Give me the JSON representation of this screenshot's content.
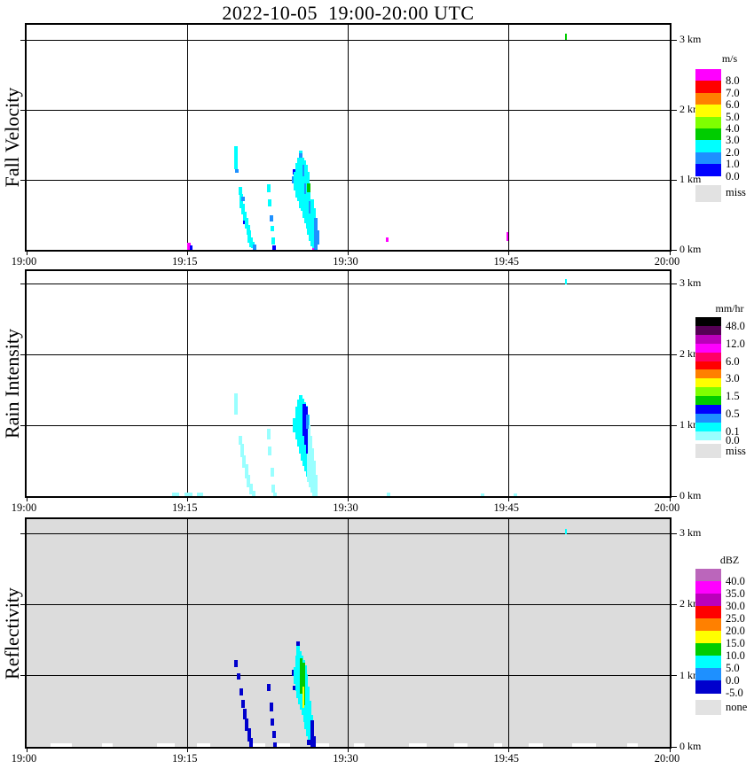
{
  "title": "2022-10-05  19:00-20:00 UTC",
  "palette": {
    "bk": "#000000",
    "dpu": "#550055",
    "pu": "#bb00bb",
    "mg": "#ff00ff",
    "dp": "#ff0066",
    "rd": "#ff0000",
    "or": "#ff8000",
    "yw": "#ffff00",
    "ch": "#7fff00",
    "gr": "#00cc00",
    "cy": "#00ffff",
    "pc": "#99ffff",
    "db": "#1e90ff",
    "bl": "#0000ff",
    "dk": "#0000cd",
    "oc": "#bb66bb",
    "ms": "#e2e2e2",
    "wh": "#ffffff",
    "bg3": "#dcdcdc",
    "grid": "#000000"
  },
  "chart_data": [
    {
      "type": "heatmap",
      "name": "Fall Velocity",
      "units": "m/s",
      "background": "#ffffff",
      "x_range_minutes_after_1900": [
        0,
        60
      ],
      "y_range_km": [
        0,
        3.2
      ],
      "x_ticks": [
        {
          "t": 0,
          "label": "19:00"
        },
        {
          "t": 15,
          "label": "19:15"
        },
        {
          "t": 30,
          "label": "19:30"
        },
        {
          "t": 45,
          "label": "19:45"
        },
        {
          "t": 60,
          "label": "20:00"
        }
      ],
      "y_ticks": [
        {
          "km": 0,
          "label": "0 km"
        },
        {
          "km": 1,
          "label": "1 km"
        },
        {
          "km": 2,
          "label": "2 km"
        },
        {
          "km": 3,
          "label": "3 km"
        }
      ],
      "grid_t": [
        15,
        30,
        45
      ],
      "grid_km": [
        1,
        2,
        3
      ],
      "legend": {
        "title": "m/s",
        "entries": [
          [
            "mg",
            "8.0"
          ],
          [
            "rd",
            "7.0"
          ],
          [
            "or",
            "6.0"
          ],
          [
            "yw",
            "5.0"
          ],
          [
            "ch",
            "4.0"
          ],
          [
            "gr",
            "3.0"
          ],
          [
            "cy",
            "2.0"
          ],
          [
            "db",
            "1.0"
          ],
          [
            "bl",
            "0.0"
          ]
        ],
        "extra": [
          "ms",
          "miss"
        ]
      },
      "cells": [
        [
          15.1,
          0,
          0.1,
          "mg"
        ],
        [
          15.35,
          0,
          0.06,
          "bl",
          0.2
        ],
        [
          19.5,
          1.15,
          1.48,
          "cy"
        ],
        [
          19.6,
          1.1,
          1.15,
          "db"
        ],
        [
          19.9,
          0.78,
          0.9,
          "cy"
        ],
        [
          20.0,
          0.6,
          0.8,
          "cy"
        ],
        [
          20.15,
          0.7,
          0.76,
          "db"
        ],
        [
          20.2,
          0.5,
          0.66,
          "cy"
        ],
        [
          20.35,
          0.42,
          0.55,
          "cy"
        ],
        [
          20.35,
          0.36,
          0.42,
          "bl"
        ],
        [
          20.5,
          0.3,
          0.46,
          "cy"
        ],
        [
          20.65,
          0.22,
          0.36,
          "cy"
        ],
        [
          20.8,
          0.1,
          0.28,
          "cy"
        ],
        [
          20.95,
          0.04,
          0.18,
          "cy"
        ],
        [
          21.1,
          0.02,
          0.12,
          "cy"
        ],
        [
          21.3,
          0.0,
          0.08,
          "db"
        ],
        [
          22.55,
          0.82,
          0.94,
          "cy"
        ],
        [
          22.7,
          0.62,
          0.72,
          "cy"
        ],
        [
          22.8,
          0.4,
          0.5,
          "db"
        ],
        [
          22.9,
          0.26,
          0.34,
          "cy"
        ],
        [
          23.0,
          0.08,
          0.18,
          "cy"
        ],
        [
          23.1,
          0.0,
          0.06,
          "bl"
        ],
        [
          24.9,
          0.95,
          1.05,
          "db"
        ],
        [
          24.95,
          1.08,
          1.15,
          "bl"
        ],
        [
          25.05,
          0.85,
          1.12,
          "cy"
        ],
        [
          25.2,
          0.75,
          1.24,
          "cy"
        ],
        [
          25.4,
          0.7,
          1.32,
          "cy"
        ],
        [
          25.55,
          0.6,
          1.42,
          "cy"
        ],
        [
          25.55,
          1.32,
          1.38,
          "db"
        ],
        [
          25.7,
          0.55,
          1.32,
          "cy"
        ],
        [
          25.9,
          0.45,
          1.28,
          "cy"
        ],
        [
          25.9,
          1.05,
          1.22,
          "db"
        ],
        [
          26.05,
          0.38,
          1.22,
          "cy"
        ],
        [
          26.1,
          0.8,
          0.95,
          "db"
        ],
        [
          26.2,
          0.3,
          1.12,
          "cy"
        ],
        [
          26.35,
          0.82,
          0.95,
          "gr"
        ],
        [
          26.35,
          0.22,
          0.82,
          "cy"
        ],
        [
          26.5,
          0.52,
          0.7,
          "db"
        ],
        [
          26.5,
          0.12,
          0.52,
          "cy"
        ],
        [
          26.65,
          0.05,
          0.72,
          "cy"
        ],
        [
          26.8,
          0.02,
          0.6,
          "cy"
        ],
        [
          26.8,
          0.0,
          0.03,
          "mg"
        ],
        [
          26.95,
          0.0,
          0.45,
          "db"
        ],
        [
          27.1,
          0.08,
          0.28,
          "db"
        ],
        [
          33.65,
          0.11,
          0.18,
          "mg",
          0.25
        ],
        [
          44.85,
          0.13,
          0.25,
          "mg",
          0.15
        ],
        [
          50.3,
          3.0,
          3.09,
          "gr",
          0.2
        ]
      ]
    },
    {
      "type": "heatmap",
      "name": "Rain Intensity",
      "units": "mm/hr",
      "background": "#ffffff",
      "x_range_minutes_after_1900": [
        0,
        60
      ],
      "y_range_km": [
        0,
        3.2
      ],
      "x_ticks": [
        {
          "t": 0,
          "label": "19:00"
        },
        {
          "t": 15,
          "label": "19:15"
        },
        {
          "t": 30,
          "label": "19:30"
        },
        {
          "t": 45,
          "label": "19:45"
        },
        {
          "t": 60,
          "label": "20:00"
        }
      ],
      "y_ticks": [
        {
          "km": 0,
          "label": "0 km"
        },
        {
          "km": 1,
          "label": "1 km"
        },
        {
          "km": 2,
          "label": "2 km"
        },
        {
          "km": 3,
          "label": "3 km"
        }
      ],
      "grid_t": [
        15,
        30,
        45
      ],
      "grid_km": [
        1,
        2,
        3
      ],
      "legend": {
        "title": "mm/hr",
        "entries": [
          [
            "bk",
            "48.0"
          ],
          [
            "dpu",
            ""
          ],
          [
            "pu",
            "12.0"
          ],
          [
            "mg",
            ""
          ],
          [
            "dp",
            "6.0"
          ],
          [
            "rd",
            ""
          ],
          [
            "or",
            "3.0"
          ],
          [
            "yw",
            ""
          ],
          [
            "ch",
            "1.5"
          ],
          [
            "gr",
            ""
          ],
          [
            "bl",
            "0.5"
          ],
          [
            "db",
            ""
          ],
          [
            "cy",
            "0.1"
          ],
          [
            "pc",
            "0.0"
          ]
        ],
        "extra": [
          "ms",
          "miss"
        ]
      },
      "cells": [
        [
          13.9,
          0.0,
          0.05,
          "pc",
          0.6
        ],
        [
          15.1,
          0.0,
          0.05,
          "pc",
          0.8
        ],
        [
          16.2,
          0.0,
          0.05,
          "pc",
          0.6
        ],
        [
          19.5,
          1.15,
          1.45,
          "pc"
        ],
        [
          19.9,
          0.72,
          0.85,
          "pc"
        ],
        [
          20.1,
          0.55,
          0.74,
          "pc"
        ],
        [
          20.3,
          0.4,
          0.58,
          "pc"
        ],
        [
          20.5,
          0.25,
          0.45,
          "pc"
        ],
        [
          20.7,
          0.12,
          0.3,
          "pc"
        ],
        [
          20.9,
          0.02,
          0.18,
          "pc"
        ],
        [
          21.15,
          0.0,
          0.08,
          "pc"
        ],
        [
          22.55,
          0.8,
          0.95,
          "pc"
        ],
        [
          22.7,
          0.58,
          0.7,
          "pc"
        ],
        [
          22.9,
          0.28,
          0.4,
          "pc"
        ],
        [
          23.0,
          0.05,
          0.16,
          "pc"
        ],
        [
          23.15,
          0.0,
          0.05,
          "pc"
        ],
        [
          25.0,
          0.9,
          1.1,
          "cy"
        ],
        [
          25.2,
          0.8,
          1.26,
          "cy"
        ],
        [
          25.4,
          0.7,
          1.36,
          "cy"
        ],
        [
          25.6,
          0.6,
          1.42,
          "cy"
        ],
        [
          25.75,
          0.5,
          1.38,
          "cy"
        ],
        [
          25.9,
          0.42,
          1.32,
          "cy"
        ],
        [
          26.05,
          0.35,
          1.28,
          "cy"
        ],
        [
          26.2,
          0.28,
          1.15,
          "cy"
        ],
        [
          26.35,
          0.2,
          1.0,
          "pc"
        ],
        [
          26.5,
          0.12,
          0.85,
          "pc"
        ],
        [
          26.65,
          0.05,
          0.68,
          "pc"
        ],
        [
          26.8,
          0.0,
          0.5,
          "pc"
        ],
        [
          26.95,
          0.0,
          0.3,
          "pc"
        ],
        [
          25.9,
          0.85,
          1.3,
          "bl"
        ],
        [
          26.05,
          0.72,
          1.26,
          "bl"
        ],
        [
          26.15,
          0.6,
          1.1,
          "bl",
          0.17
        ],
        [
          26.2,
          0.95,
          1.15,
          "db",
          0.17
        ],
        [
          33.8,
          0.0,
          0.05,
          "pc"
        ],
        [
          42.5,
          0.0,
          0.04,
          "pc"
        ],
        [
          45.6,
          0.0,
          0.04,
          "pc"
        ],
        [
          50.3,
          2.99,
          3.06,
          "cy",
          0.15
        ]
      ]
    },
    {
      "type": "heatmap",
      "name": "Reflectivity",
      "units": "dBZ",
      "background": "#dcdcdc",
      "x_range_minutes_after_1900": [
        0,
        60
      ],
      "y_range_km": [
        0,
        3.2
      ],
      "x_ticks": [
        {
          "t": 0,
          "label": "19:00"
        },
        {
          "t": 15,
          "label": "19:15"
        },
        {
          "t": 30,
          "label": "19:30"
        },
        {
          "t": 45,
          "label": "19:45"
        },
        {
          "t": 60,
          "label": "20:00"
        }
      ],
      "y_ticks": [
        {
          "km": 0,
          "label": "0 km"
        },
        {
          "km": 1,
          "label": "1 km"
        },
        {
          "km": 2,
          "label": "2 km"
        },
        {
          "km": 3,
          "label": "3 km"
        }
      ],
      "grid_t": [
        15,
        30,
        45
      ],
      "grid_km": [
        1,
        2,
        3
      ],
      "legend": {
        "title": "dBZ",
        "entries": [
          [
            "oc",
            "40.0"
          ],
          [
            "mg",
            "35.0"
          ],
          [
            "pu",
            "30.0"
          ],
          [
            "rd",
            "25.0"
          ],
          [
            "or",
            "20.0"
          ],
          [
            "yw",
            "15.0"
          ],
          [
            "gr",
            "10.0"
          ],
          [
            "cy",
            "5.0"
          ],
          [
            "db",
            "0.0"
          ],
          [
            "dk",
            "-5.0"
          ]
        ],
        "extra": [
          "ms",
          "none"
        ]
      },
      "cells": [
        [
          3.2,
          0,
          0.05,
          "wh",
          2.0
        ],
        [
          7.5,
          0,
          0.05,
          "wh",
          1.0
        ],
        [
          13.0,
          0,
          0.05,
          "wh",
          1.6
        ],
        [
          16.5,
          0,
          0.05,
          "wh",
          1.2
        ],
        [
          21.6,
          0,
          0.05,
          "wh",
          1.4
        ],
        [
          23.8,
          0,
          0.05,
          "wh",
          1.6
        ],
        [
          27.6,
          0,
          0.05,
          "wh",
          1.2
        ],
        [
          31.0,
          0,
          0.05,
          "wh",
          1.0
        ],
        [
          36.5,
          0,
          0.05,
          "wh",
          1.6
        ],
        [
          40.5,
          0,
          0.05,
          "wh",
          1.2
        ],
        [
          44.0,
          0,
          0.05,
          "wh",
          0.8
        ],
        [
          47.5,
          0,
          0.05,
          "wh",
          1.4
        ],
        [
          52.0,
          0,
          0.05,
          "wh",
          2.2
        ],
        [
          56.5,
          0,
          0.05,
          "wh",
          1.0
        ],
        [
          19.5,
          1.12,
          1.22,
          "dk"
        ],
        [
          19.8,
          0.95,
          1.03,
          "dk"
        ],
        [
          20.0,
          0.72,
          0.82,
          "dk"
        ],
        [
          20.2,
          0.55,
          0.66,
          "dk"
        ],
        [
          20.35,
          0.38,
          0.54,
          "dk"
        ],
        [
          20.55,
          0.22,
          0.4,
          "dk"
        ],
        [
          20.75,
          0.08,
          0.26,
          "dk"
        ],
        [
          20.95,
          0.0,
          0.12,
          "dk"
        ],
        [
          22.6,
          0.78,
          0.88,
          "dk"
        ],
        [
          22.8,
          0.5,
          0.62,
          "dk"
        ],
        [
          22.95,
          0.3,
          0.4,
          "dk"
        ],
        [
          23.05,
          0.12,
          0.22,
          "dk"
        ],
        [
          23.15,
          0.0,
          0.06,
          "dk"
        ],
        [
          24.9,
          1.0,
          1.08,
          "dk"
        ],
        [
          25.0,
          0.8,
          0.86,
          "dk"
        ],
        [
          25.05,
          0.88,
          1.12,
          "cy"
        ],
        [
          25.2,
          0.78,
          1.28,
          "cy"
        ],
        [
          25.35,
          0.68,
          1.42,
          "cy"
        ],
        [
          25.35,
          1.42,
          1.48,
          "dk"
        ],
        [
          25.5,
          0.6,
          1.35,
          "cy"
        ],
        [
          25.65,
          0.52,
          1.28,
          "cy"
        ],
        [
          25.8,
          0.45,
          1.22,
          "cy"
        ],
        [
          25.95,
          0.35,
          1.15,
          "cy"
        ],
        [
          26.1,
          0.25,
          1.02,
          "cy"
        ],
        [
          26.25,
          0.15,
          0.85,
          "cy"
        ],
        [
          26.4,
          0.08,
          0.65,
          "cy"
        ],
        [
          26.55,
          0.02,
          0.45,
          "cy"
        ],
        [
          25.65,
          0.75,
          1.25,
          "gr",
          0.25
        ],
        [
          25.85,
          0.58,
          1.18,
          "gr",
          0.25
        ],
        [
          25.8,
          0.55,
          0.85,
          "yw",
          0.15
        ],
        [
          26.3,
          0.02,
          0.1,
          "dk"
        ],
        [
          26.65,
          0.0,
          0.38,
          "dk"
        ],
        [
          26.8,
          0.0,
          0.15,
          "dk"
        ],
        [
          50.3,
          2.99,
          3.06,
          "cy",
          0.15
        ]
      ]
    }
  ]
}
